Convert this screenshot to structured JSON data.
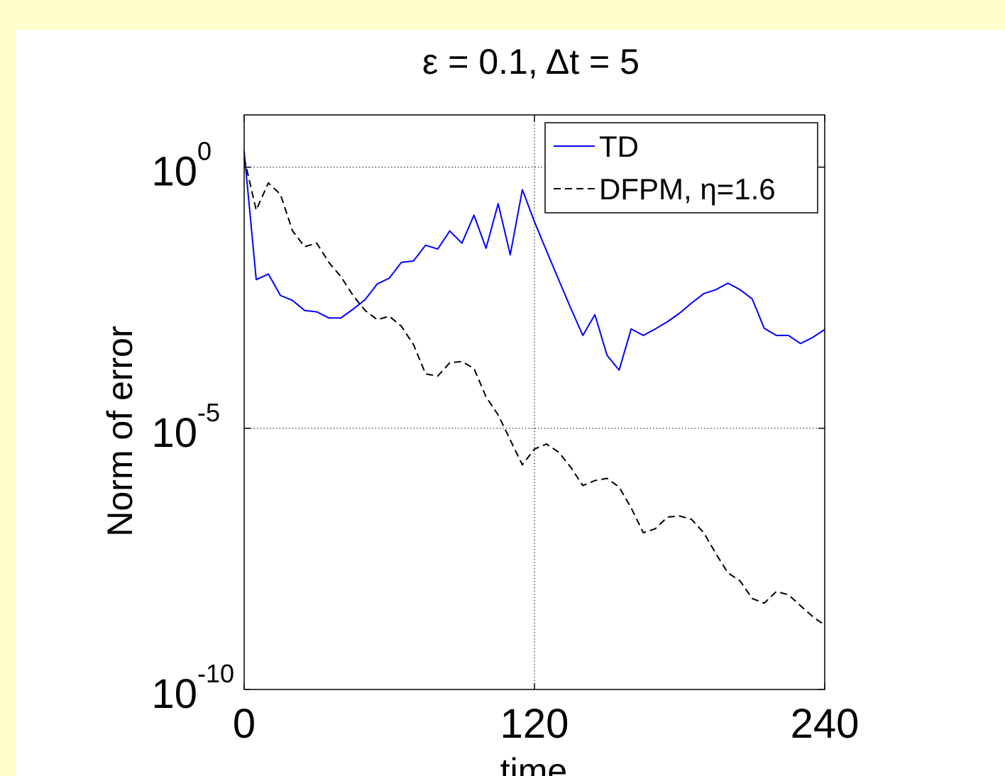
{
  "chart_data": {
    "type": "line",
    "title": "ε = 0.1, Δt = 5",
    "xlabel": "time",
    "ylabel": "Norm of error",
    "xlim": [
      0,
      240
    ],
    "ylim": [
      1e-10,
      10
    ],
    "y_scale": "log",
    "grid": true,
    "legend_position": "top-right",
    "x_ticks": [
      {
        "value": 0,
        "label": "0"
      },
      {
        "value": 120,
        "label": "120"
      },
      {
        "value": 240,
        "label": "240"
      }
    ],
    "y_ticks": [
      {
        "exp": 0,
        "base": "10",
        "sup": "0"
      },
      {
        "exp": -5,
        "base": "10",
        "sup": "-5"
      },
      {
        "exp": -10,
        "base": "10",
        "sup": "-10"
      }
    ],
    "series": [
      {
        "name": "TD",
        "color": "#0000ff",
        "dash": "solid",
        "x": [
          0,
          5,
          10,
          15,
          20,
          25,
          30,
          35,
          40,
          45,
          50,
          55,
          60,
          65,
          70,
          75,
          80,
          85,
          90,
          95,
          100,
          105,
          110,
          115,
          120,
          125,
          130,
          135,
          140,
          145,
          150,
          155,
          160,
          165,
          170,
          175,
          180,
          185,
          190,
          195,
          200,
          205,
          210,
          215,
          220,
          225,
          230,
          235,
          240
        ],
        "y": [
          2.0,
          0.007,
          0.009,
          0.0035,
          0.0028,
          0.0018,
          0.0017,
          0.0013,
          0.0013,
          0.0019,
          0.0029,
          0.0058,
          0.0075,
          0.015,
          0.016,
          0.032,
          0.027,
          0.06,
          0.035,
          0.12,
          0.028,
          0.2,
          0.021,
          0.37,
          0.09,
          0.025,
          0.007,
          0.002,
          0.0006,
          0.0015,
          0.00025,
          0.00013,
          0.0008,
          0.0006,
          0.0008,
          0.0011,
          0.0016,
          0.0025,
          0.0038,
          0.0045,
          0.006,
          0.0045,
          0.003,
          0.00082,
          0.0006,
          0.0006,
          0.00042,
          0.00055,
          0.00078
        ]
      },
      {
        "name": "DFPM, η=1.6",
        "color": "#000000",
        "dash": "dashed",
        "x": [
          0,
          5,
          10,
          15,
          20,
          25,
          30,
          35,
          40,
          45,
          50,
          55,
          60,
          65,
          70,
          75,
          80,
          85,
          90,
          95,
          100,
          105,
          110,
          115,
          120,
          125,
          130,
          135,
          140,
          145,
          150,
          155,
          160,
          165,
          170,
          175,
          180,
          185,
          190,
          195,
          200,
          205,
          210,
          215,
          220,
          225,
          230,
          235,
          240
        ],
        "y": [
          1.5,
          0.15,
          0.5,
          0.3,
          0.06,
          0.03,
          0.035,
          0.015,
          0.008,
          0.0035,
          0.0018,
          0.0012,
          0.0014,
          0.0009,
          0.0004,
          0.00011,
          0.0001,
          0.00018,
          0.00019,
          0.00014,
          4e-05,
          1.8e-05,
          6e-06,
          2e-06,
          4e-06,
          5e-06,
          3.5e-06,
          1.8e-06,
          8e-07,
          1e-06,
          1.1e-06,
          7.5e-07,
          3e-07,
          1e-07,
          1.2e-07,
          2e-07,
          2.1e-07,
          1.8e-07,
          1e-07,
          4e-08,
          1.7e-08,
          1.2e-08,
          5.5e-09,
          4.5e-09,
          7.5e-09,
          6.5e-09,
          4e-09,
          2.5e-09,
          1.7e-09
        ]
      }
    ]
  }
}
